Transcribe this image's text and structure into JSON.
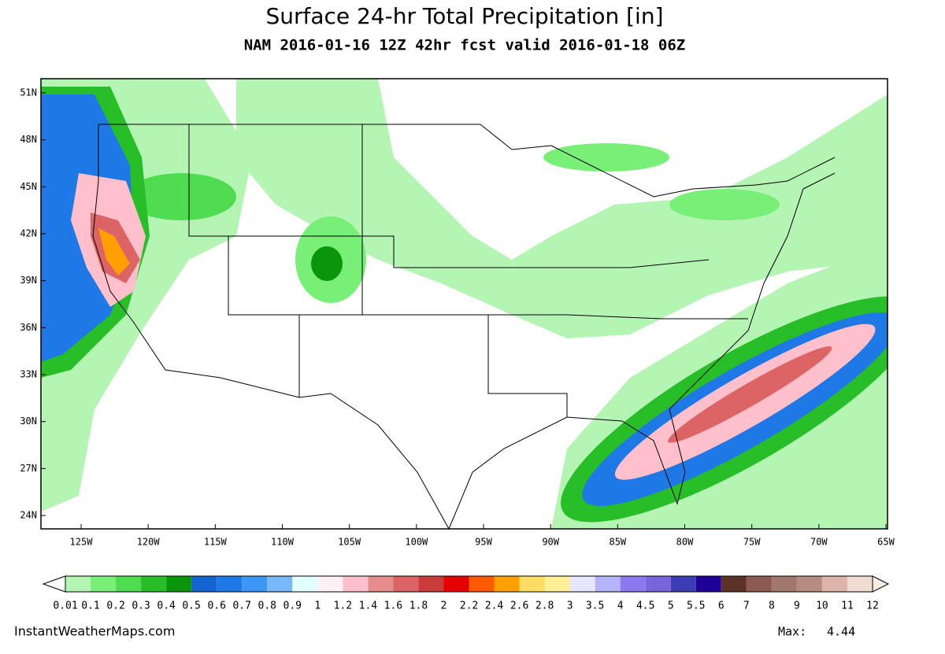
{
  "header": {
    "title": "Surface 24-hr Total Precipitation [in]",
    "subtitle": "NAM 2016-01-16 12Z 42hr fcst valid 2016-01-18 06Z"
  },
  "map": {
    "lat_ticks": [
      "51N",
      "48N",
      "45N",
      "42N",
      "39N",
      "36N",
      "33N",
      "30N",
      "27N",
      "24N"
    ],
    "lon_ticks": [
      "125W",
      "120W",
      "115W",
      "110W",
      "105W",
      "100W",
      "95W",
      "90W",
      "85W",
      "80W",
      "75W",
      "70W",
      "65W"
    ]
  },
  "colorbar": {
    "labels": [
      "0.01",
      "0.1",
      "0.2",
      "0.3",
      "0.4",
      "0.5",
      "0.6",
      "0.7",
      "0.8",
      "0.9",
      "1",
      "1.2",
      "1.4",
      "1.6",
      "1.8",
      "2",
      "2.2",
      "2.4",
      "2.6",
      "2.8",
      "3",
      "3.5",
      "4",
      "4.5",
      "5",
      "5.5",
      "6",
      "7",
      "8",
      "9",
      "10",
      "11",
      "12"
    ],
    "colors": [
      "#b4f5b4",
      "#78f078",
      "#50dc50",
      "#28be28",
      "#0a960a",
      "#1464d2",
      "#1e78e6",
      "#3c96f5",
      "#78b9fa",
      "#e1ffff",
      "#fff0f5",
      "#ffc0cb",
      "#e68c8c",
      "#dc6464",
      "#c83c3c",
      "#e60000",
      "#ff5a00",
      "#ffa000",
      "#ffdc64",
      "#fff096",
      "#e6e6ff",
      "#b4b4fa",
      "#8c78f0",
      "#7864dc",
      "#3c3cb4",
      "#1e0096",
      "#5a3228",
      "#8c5a50",
      "#a0786e",
      "#b48c82",
      "#dcb4aa",
      "#f0dcd2"
    ],
    "under_color": "#ffffff",
    "over_color": "#faebe1"
  },
  "footer": {
    "source": "InstantWeatherMaps.com",
    "max_label": "Max:",
    "max_value": "4.44"
  }
}
